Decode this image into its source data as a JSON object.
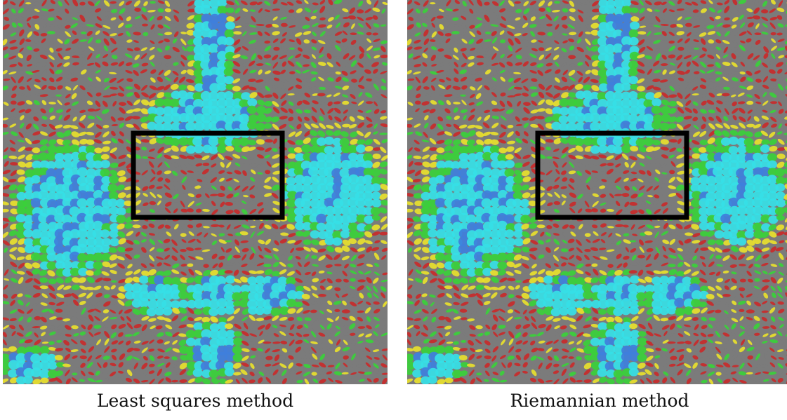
{
  "panels": [
    {
      "caption": "Least squares method",
      "image": "tensor-glyph-field-visualization",
      "highlight": "region-of-interest-box"
    },
    {
      "caption": "Riemannian method",
      "image": "tensor-glyph-field-visualization",
      "highlight": "region-of-interest-box"
    }
  ],
  "colors": {
    "background": "#7b7b7b",
    "cyan": "#36e0e6",
    "blue": "#3f7fdc",
    "green": "#3ad03a",
    "yellow": "#e8e02c",
    "red": "#c82a2a",
    "box": "#000000"
  }
}
